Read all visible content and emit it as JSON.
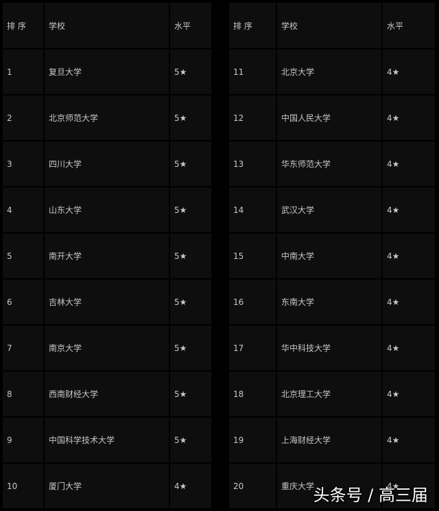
{
  "tables": [
    {
      "headers": [
        "排 序",
        "学校",
        "水平"
      ],
      "rows": [
        [
          "1",
          "复旦大学",
          "5★"
        ],
        [
          "2",
          "北京师范大学",
          "5★"
        ],
        [
          "3",
          "四川大学",
          "5★"
        ],
        [
          "4",
          "山东大学",
          "5★"
        ],
        [
          "5",
          "南开大学",
          "5★"
        ],
        [
          "6",
          "吉林大学",
          "5★"
        ],
        [
          "7",
          "南京大学",
          "5★"
        ],
        [
          "8",
          "西南财经大学",
          "5★"
        ],
        [
          "9",
          "中国科学技术大学",
          "5★"
        ],
        [
          "10",
          "厦门大学",
          "4★"
        ]
      ]
    },
    {
      "headers": [
        "排 序",
        "学校",
        "水平"
      ],
      "rows": [
        [
          "11",
          "北京大学",
          "4★"
        ],
        [
          "12",
          "中国人民大学",
          "4★"
        ],
        [
          "13",
          "华东师范大学",
          "4★"
        ],
        [
          "14",
          "武汉大学",
          "4★"
        ],
        [
          "15",
          "中南大学",
          "4★"
        ],
        [
          "16",
          "东南大学",
          "4★"
        ],
        [
          "17",
          "华中科技大学",
          "4★"
        ],
        [
          "18",
          "北京理工大学",
          "4★"
        ],
        [
          "19",
          "上海财经大学",
          "4★"
        ],
        [
          "20",
          "重庆大学",
          "4★"
        ]
      ]
    }
  ],
  "watermark": "头条号 / 高三届"
}
